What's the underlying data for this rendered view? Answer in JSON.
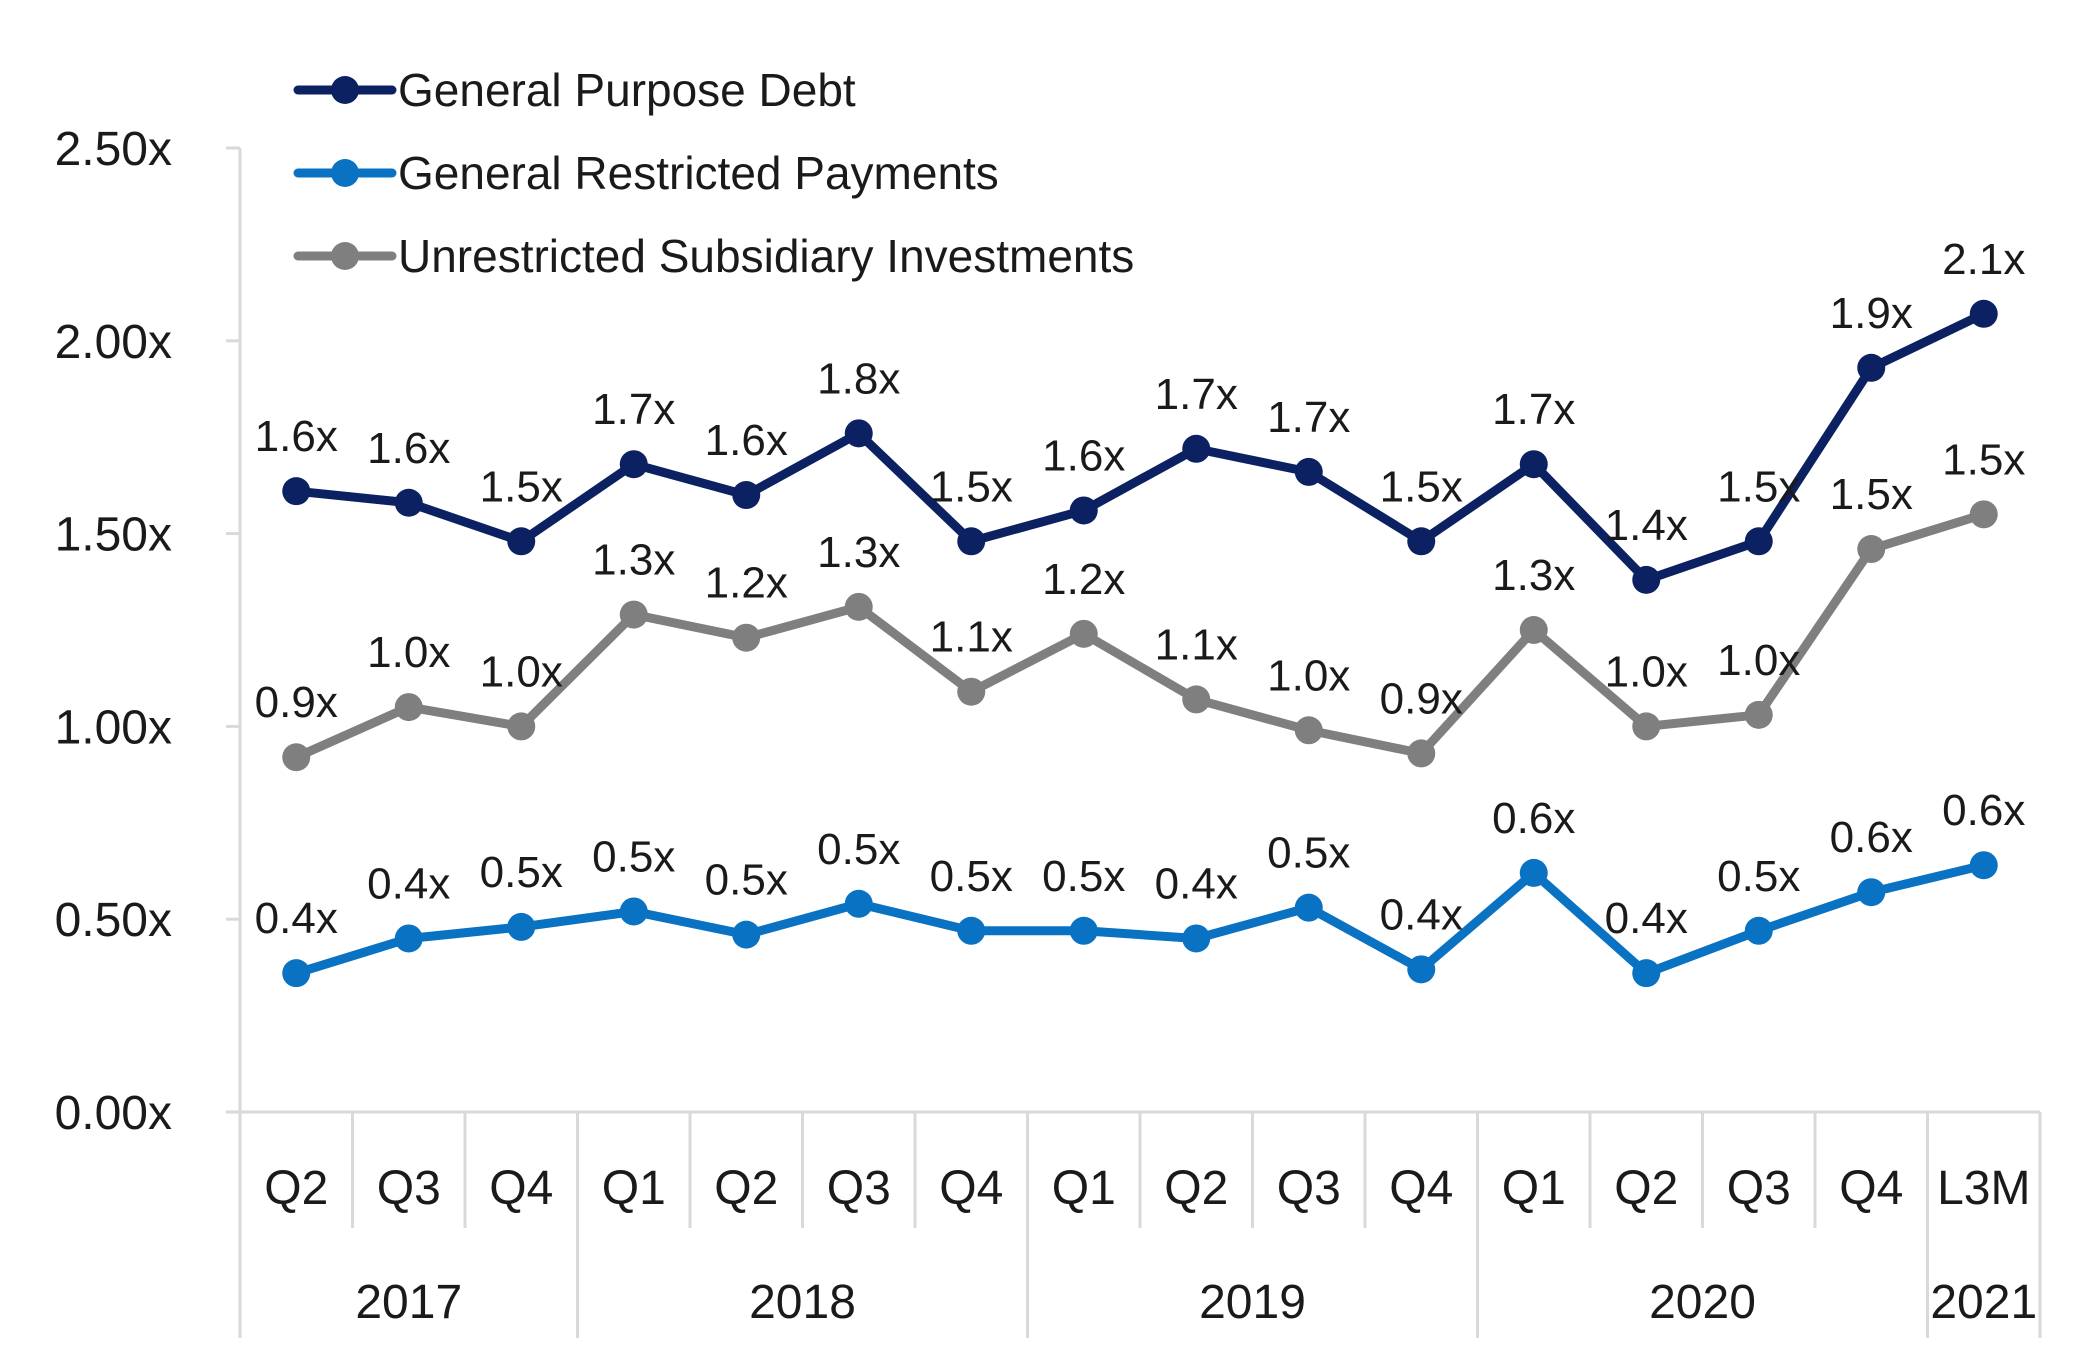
{
  "chart_data": {
    "type": "line",
    "title": "",
    "xlabel": "",
    "ylabel": "",
    "ylim": [
      0,
      2.5
    ],
    "yticks": [
      "0.00x",
      "0.50x",
      "1.00x",
      "1.50x",
      "2.00x",
      "2.50x"
    ],
    "categories": [
      "Q2",
      "Q3",
      "Q4",
      "Q1",
      "Q2",
      "Q3",
      "Q4",
      "Q1",
      "Q2",
      "Q3",
      "Q4",
      "Q1",
      "Q2",
      "Q3",
      "Q4",
      "L3M"
    ],
    "year_groups": [
      {
        "label": "2017",
        "count": 3
      },
      {
        "label": "2018",
        "count": 4
      },
      {
        "label": "2019",
        "count": 4
      },
      {
        "label": "2020",
        "count": 4
      },
      {
        "label": "2021",
        "count": 1
      }
    ],
    "legend_position": "top-left",
    "grid": false,
    "series": [
      {
        "name": "General Purpose Debt",
        "color": "#0b2161",
        "values": [
          1.61,
          1.58,
          1.48,
          1.68,
          1.6,
          1.76,
          1.48,
          1.56,
          1.72,
          1.66,
          1.48,
          1.68,
          1.38,
          1.48,
          1.93,
          2.07
        ],
        "labels": [
          "1.6x",
          "1.6x",
          "1.5x",
          "1.7x",
          "1.6x",
          "1.8x",
          "1.5x",
          "1.6x",
          "1.7x",
          "1.7x",
          "1.5x",
          "1.7x",
          "1.4x",
          "1.5x",
          "1.9x",
          "2.1x"
        ]
      },
      {
        "name": "General Restricted Payments",
        "color": "#0a72c2",
        "values": [
          0.36,
          0.45,
          0.48,
          0.52,
          0.46,
          0.54,
          0.47,
          0.47,
          0.45,
          0.53,
          0.37,
          0.62,
          0.36,
          0.47,
          0.57,
          0.64
        ],
        "labels": [
          "0.4x",
          "0.4x",
          "0.5x",
          "0.5x",
          "0.5x",
          "0.5x",
          "0.5x",
          "0.5x",
          "0.4x",
          "0.5x",
          "0.4x",
          "0.6x",
          "0.4x",
          "0.5x",
          "0.6x",
          "0.6x"
        ]
      },
      {
        "name": "Unrestricted Subsidiary Investments",
        "color": "#7f7f7f",
        "values": [
          0.92,
          1.05,
          1.0,
          1.29,
          1.23,
          1.31,
          1.09,
          1.24,
          1.07,
          0.99,
          0.93,
          1.25,
          1.0,
          1.03,
          1.46,
          1.55
        ],
        "labels": [
          "0.9x",
          "1.0x",
          "1.0x",
          "1.3x",
          "1.2x",
          "1.3x",
          "1.1x",
          "1.2x",
          "1.1x",
          "1.0x",
          "0.9x",
          "1.3x",
          "1.0x",
          "1.0x",
          "1.5x",
          "1.5x"
        ]
      }
    ]
  }
}
